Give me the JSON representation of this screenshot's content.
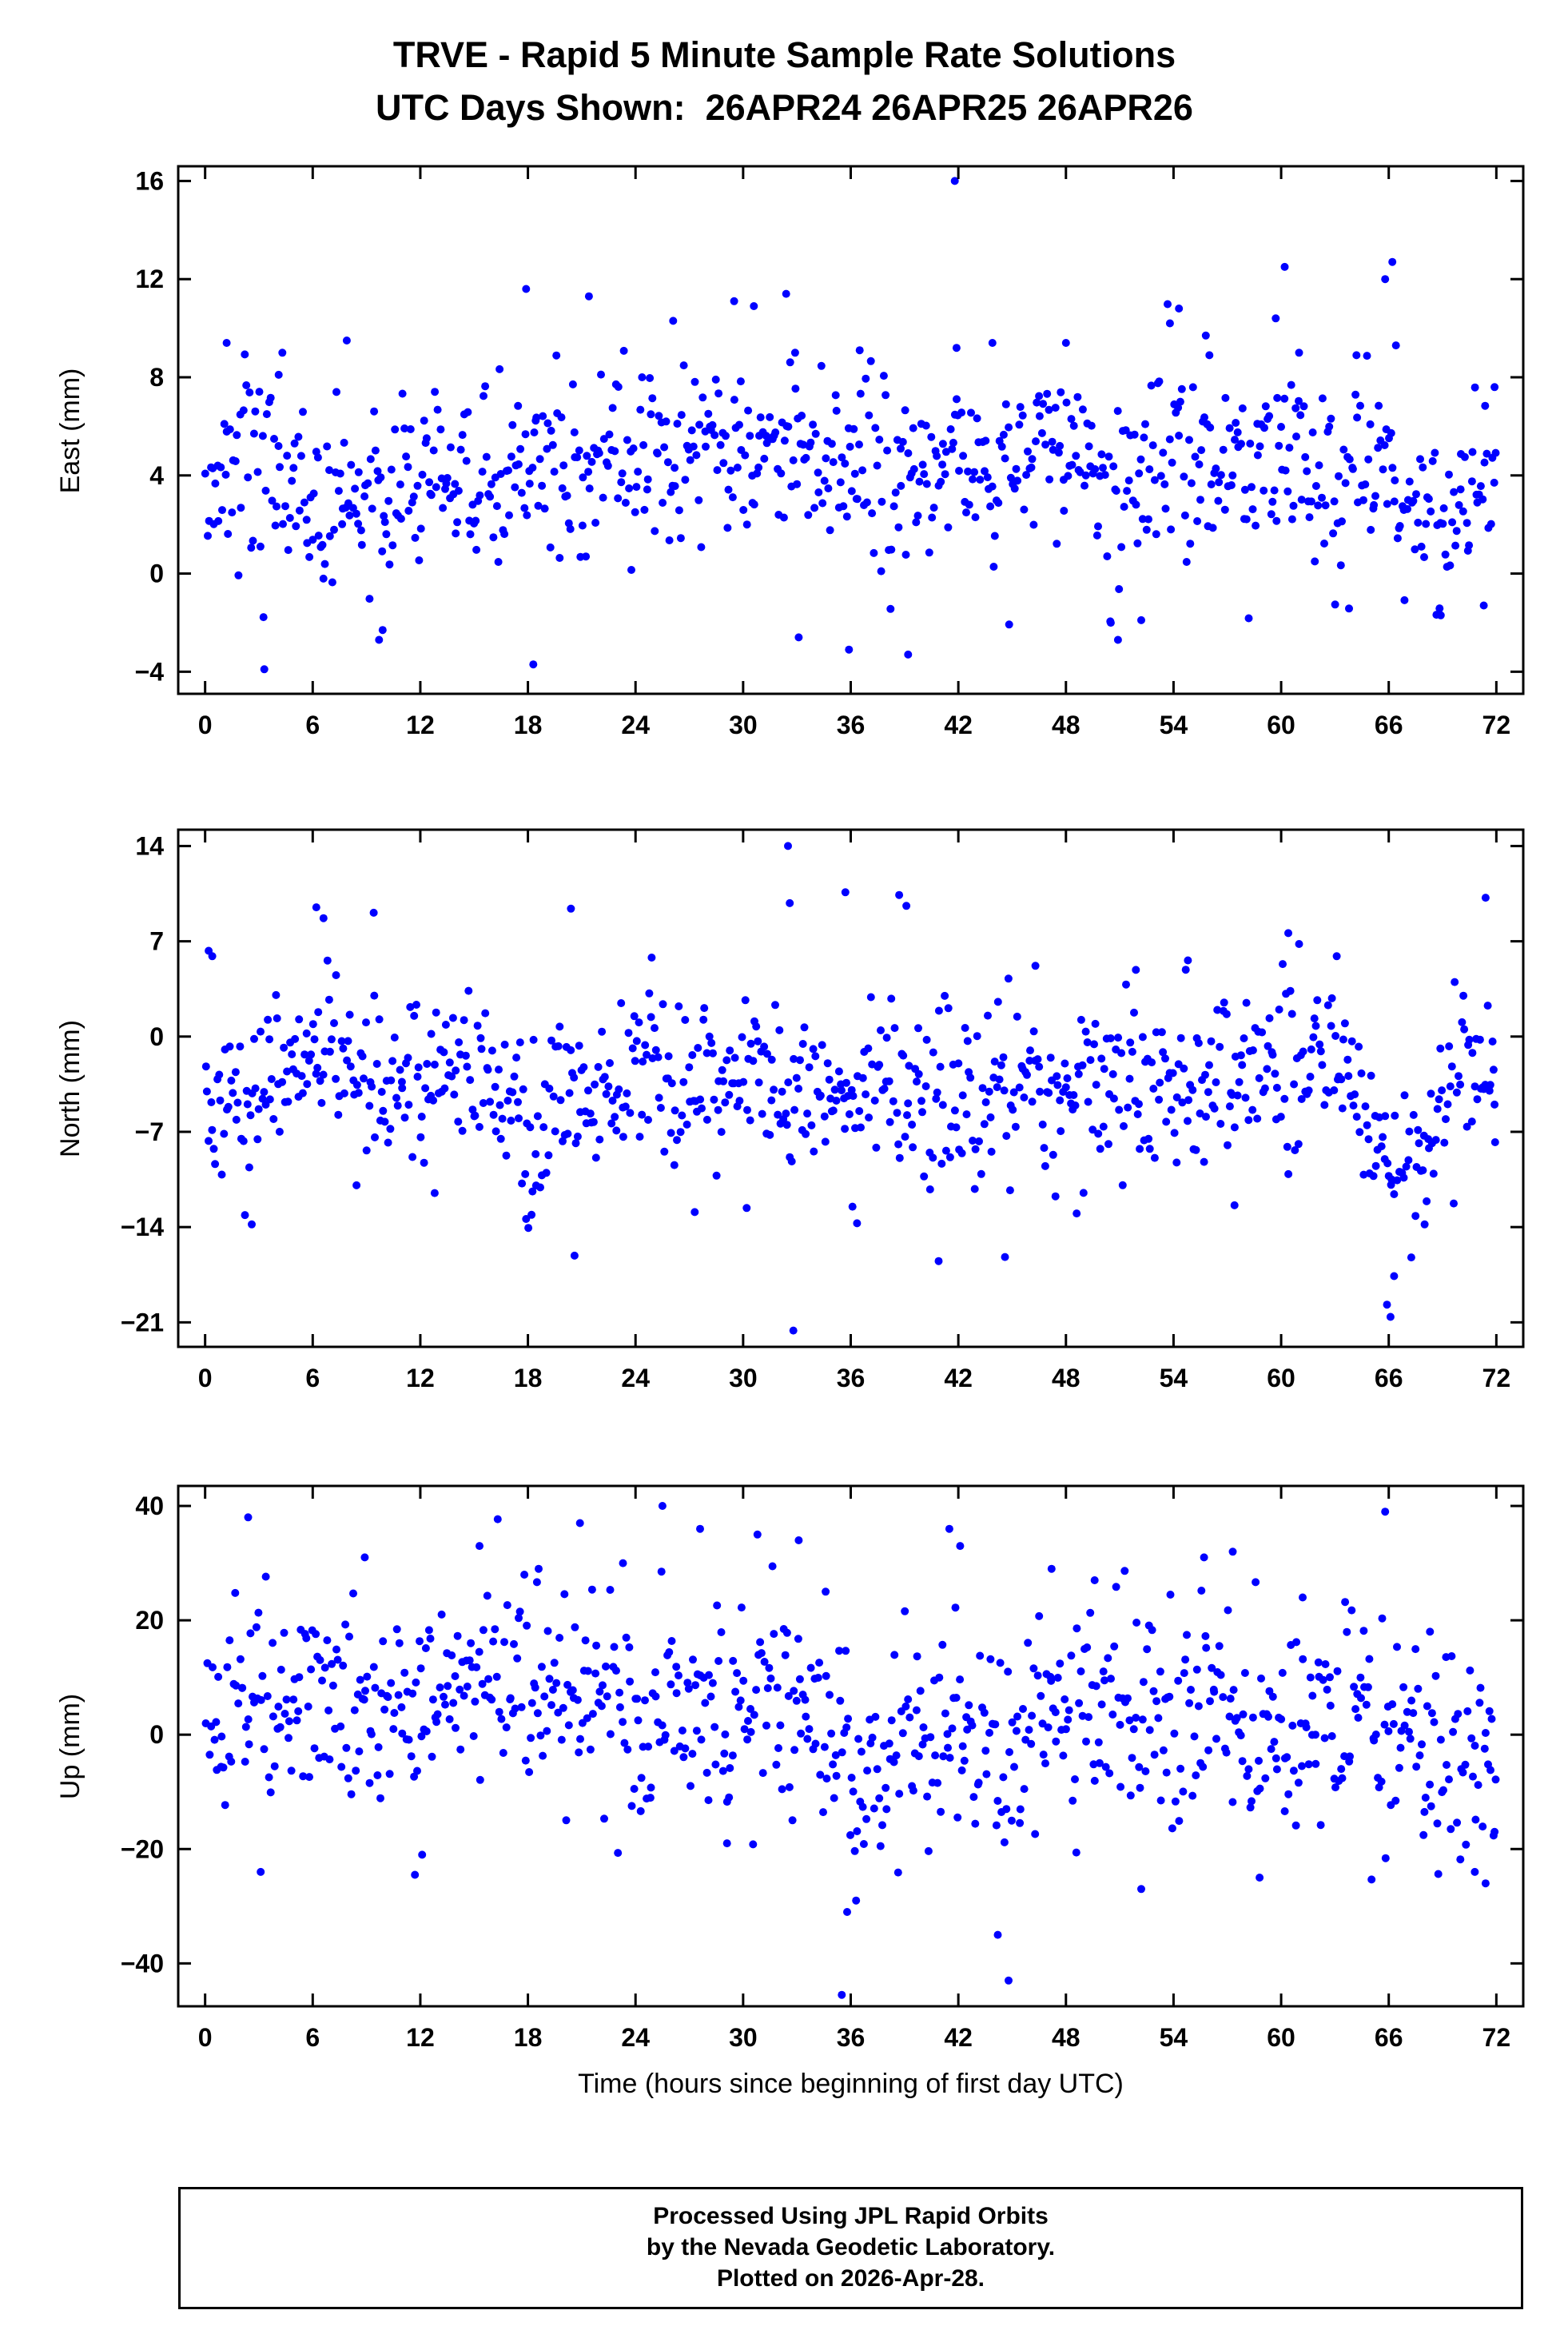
{
  "title": "TRVE - Rapid 5 Minute Sample Rate Solutions",
  "subtitle": "UTC Days Shown:  26APR24 26APR25 26APR26",
  "xlabel": "Time (hours since beginning of first day UTC)",
  "footer": {
    "line1": "Processed Using JPL Rapid Orbits",
    "line2": "by the Nevada Geodetic Laboratory.",
    "line3": "Plotted on 2026-Apr-28."
  },
  "colors": {
    "point": "#0000FF",
    "frame": "#000000"
  },
  "chart_data": [
    {
      "type": "scatter",
      "name": "east",
      "ylabel": "East (mm)",
      "xlabel": "",
      "xlim": [
        -1.5,
        73.5
      ],
      "ylim": [
        -4.9,
        16.6
      ],
      "xticks": [
        0,
        6,
        12,
        18,
        24,
        30,
        36,
        42,
        48,
        54,
        60,
        66,
        72
      ],
      "yticks": [
        -4,
        0,
        4,
        8,
        12,
        16
      ],
      "n_points": 800,
      "seed": 7,
      "noise_std": 1.9,
      "mean_path": [
        [
          0,
          3.4
        ],
        [
          3,
          4.4
        ],
        [
          6,
          3.4
        ],
        [
          9,
          3.2
        ],
        [
          12,
          3.8
        ],
        [
          15,
          3.4
        ],
        [
          18,
          4.2
        ],
        [
          21,
          4.4
        ],
        [
          24,
          5.2
        ],
        [
          27,
          5.4
        ],
        [
          30,
          5.0
        ],
        [
          33,
          5.4
        ],
        [
          36,
          4.4
        ],
        [
          39,
          3.8
        ],
        [
          42,
          4.6
        ],
        [
          45,
          4.6
        ],
        [
          48,
          5.2
        ],
        [
          51,
          3.2
        ],
        [
          54,
          4.6
        ],
        [
          57,
          4.8
        ],
        [
          60,
          4.2
        ],
        [
          63,
          3.4
        ],
        [
          66,
          3.6
        ],
        [
          69,
          2.8
        ],
        [
          72,
          4.2
        ]
      ],
      "outliers": [
        [
          1.2,
          9.4
        ],
        [
          3.3,
          -3.9
        ],
        [
          4.1,
          8.1
        ],
        [
          7.9,
          9.5
        ],
        [
          9.7,
          -2.7
        ],
        [
          9.9,
          -2.3
        ],
        [
          17.9,
          11.6
        ],
        [
          18.3,
          -3.7
        ],
        [
          21.4,
          11.3
        ],
        [
          26.1,
          10.3
        ],
        [
          29.5,
          11.1
        ],
        [
          30.6,
          10.9
        ],
        [
          32.4,
          11.4
        ],
        [
          32.9,
          9.0
        ],
        [
          33.1,
          -2.6
        ],
        [
          35.9,
          -3.1
        ],
        [
          36.5,
          9.1
        ],
        [
          39.2,
          -3.3
        ],
        [
          41.8,
          16.0
        ],
        [
          41.9,
          9.2
        ],
        [
          43.9,
          9.4
        ],
        [
          48.0,
          9.4
        ],
        [
          50.9,
          -2.7
        ],
        [
          52.2,
          -1.9
        ],
        [
          53.8,
          10.2
        ],
        [
          54.3,
          10.8
        ],
        [
          55.8,
          9.7
        ],
        [
          56.0,
          8.9
        ],
        [
          59.7,
          10.4
        ],
        [
          60.2,
          12.5
        ],
        [
          61.0,
          9.0
        ],
        [
          64.2,
          8.9
        ],
        [
          65.8,
          12.0
        ],
        [
          66.2,
          12.7
        ],
        [
          66.4,
          9.3
        ],
        [
          68.9,
          -1.7
        ],
        [
          71.3,
          -1.3
        ],
        [
          71.9,
          7.6
        ]
      ]
    },
    {
      "type": "scatter",
      "name": "north",
      "ylabel": "North (mm)",
      "xlabel": "",
      "xlim": [
        -1.5,
        73.5
      ],
      "ylim": [
        -22.8,
        15.2
      ],
      "xticks": [
        0,
        6,
        12,
        18,
        24,
        30,
        36,
        42,
        48,
        54,
        60,
        66,
        72
      ],
      "yticks": [
        -21,
        -14,
        -7,
        0,
        7,
        14
      ],
      "n_points": 800,
      "seed": 13,
      "noise_std": 3.1,
      "mean_path": [
        [
          0,
          -4.8
        ],
        [
          2,
          -6.5
        ],
        [
          4,
          -4.5
        ],
        [
          6,
          -2.2
        ],
        [
          8,
          -1.8
        ],
        [
          10,
          -2.5
        ],
        [
          12,
          -2.2
        ],
        [
          14,
          -3.0
        ],
        [
          16,
          -4.5
        ],
        [
          18,
          -6.0
        ],
        [
          20,
          -4.5
        ],
        [
          22,
          -3.2
        ],
        [
          24,
          -3.0
        ],
        [
          26,
          -3.6
        ],
        [
          28,
          -3.2
        ],
        [
          30,
          -3.0
        ],
        [
          32,
          -3.4
        ],
        [
          34,
          -3.8
        ],
        [
          36,
          -4.2
        ],
        [
          38,
          -4.6
        ],
        [
          40,
          -4.2
        ],
        [
          42,
          -4.8
        ],
        [
          44,
          -4.0
        ],
        [
          46,
          -3.2
        ],
        [
          48,
          -4.4
        ],
        [
          50,
          -3.4
        ],
        [
          52,
          -3.0
        ],
        [
          54,
          -4.2
        ],
        [
          56,
          -3.6
        ],
        [
          58,
          -3.0
        ],
        [
          60,
          -2.2
        ],
        [
          62,
          -1.2
        ],
        [
          64,
          -2.5
        ],
        [
          66,
          -9.5
        ],
        [
          67,
          -10.5
        ],
        [
          68,
          -8.0
        ],
        [
          70,
          -2.5
        ],
        [
          72,
          -3.5
        ]
      ],
      "outliers": [
        [
          0.2,
          6.3
        ],
        [
          0.4,
          5.9
        ],
        [
          2.6,
          -13.8
        ],
        [
          6.2,
          9.5
        ],
        [
          6.6,
          8.7
        ],
        [
          9.4,
          9.1
        ],
        [
          12.8,
          -11.5
        ],
        [
          17.9,
          -13.4
        ],
        [
          18.2,
          -13.1
        ],
        [
          20.4,
          9.4
        ],
        [
          20.6,
          -16.1
        ],
        [
          24.9,
          5.8
        ],
        [
          27.3,
          -12.9
        ],
        [
          30.2,
          -12.6
        ],
        [
          32.5,
          14.0
        ],
        [
          32.6,
          9.8
        ],
        [
          32.8,
          -21.6
        ],
        [
          35.7,
          10.6
        ],
        [
          36.1,
          -12.5
        ],
        [
          38.7,
          10.4
        ],
        [
          39.1,
          9.6
        ],
        [
          40.9,
          -16.5
        ],
        [
          44.6,
          -16.2
        ],
        [
          46.3,
          5.2
        ],
        [
          48.6,
          -13.0
        ],
        [
          51.9,
          4.9
        ],
        [
          54.8,
          5.6
        ],
        [
          57.4,
          -12.4
        ],
        [
          60.4,
          7.6
        ],
        [
          61.0,
          6.8
        ],
        [
          63.1,
          5.9
        ],
        [
          65.9,
          -19.7
        ],
        [
          66.1,
          -20.6
        ],
        [
          66.3,
          -17.6
        ],
        [
          68.0,
          -13.8
        ],
        [
          71.4,
          10.2
        ],
        [
          71.9,
          -5.0
        ]
      ]
    },
    {
      "type": "scatter",
      "name": "up",
      "ylabel": "Up (mm)",
      "xlabel": "Time (hours since beginning of first day UTC)",
      "xlim": [
        -1.5,
        73.5
      ],
      "ylim": [
        -47.5,
        43.5
      ],
      "xticks": [
        0,
        6,
        12,
        18,
        24,
        30,
        36,
        42,
        48,
        54,
        60,
        66,
        72
      ],
      "yticks": [
        -40,
        -20,
        0,
        20,
        40
      ],
      "n_points": 800,
      "seed": 21,
      "noise_std": 9.3,
      "mean_path": [
        [
          0,
          4
        ],
        [
          2,
          8
        ],
        [
          4,
          7
        ],
        [
          6,
          9
        ],
        [
          8,
          6
        ],
        [
          10,
          3
        ],
        [
          12,
          7
        ],
        [
          14,
          10
        ],
        [
          16,
          11
        ],
        [
          18,
          9
        ],
        [
          20,
          9
        ],
        [
          22,
          7
        ],
        [
          24,
          6
        ],
        [
          26,
          6
        ],
        [
          28,
          4
        ],
        [
          30,
          5
        ],
        [
          32,
          9
        ],
        [
          34,
          6
        ],
        [
          36,
          -6
        ],
        [
          38,
          -6
        ],
        [
          40,
          1
        ],
        [
          42,
          3
        ],
        [
          44,
          -1
        ],
        [
          46,
          1
        ],
        [
          48,
          3
        ],
        [
          50,
          3
        ],
        [
          52,
          2
        ],
        [
          54,
          4
        ],
        [
          56,
          5
        ],
        [
          58,
          2
        ],
        [
          60,
          0
        ],
        [
          62,
          3
        ],
        [
          64,
          2
        ],
        [
          66,
          1
        ],
        [
          68,
          -2
        ],
        [
          70,
          -3
        ],
        [
          72,
          -5
        ]
      ],
      "outliers": [
        [
          2.4,
          38
        ],
        [
          3.1,
          -24
        ],
        [
          8.9,
          31
        ],
        [
          11.7,
          -24.5
        ],
        [
          12.1,
          -21
        ],
        [
          15.3,
          33
        ],
        [
          18.6,
          29
        ],
        [
          20.9,
          37
        ],
        [
          23.3,
          30
        ],
        [
          25.5,
          40
        ],
        [
          27.6,
          36
        ],
        [
          29.1,
          -19
        ],
        [
          30.8,
          35
        ],
        [
          33.1,
          34
        ],
        [
          34.6,
          25
        ],
        [
          35.5,
          -45.5
        ],
        [
          35.8,
          -31
        ],
        [
          36.3,
          -29
        ],
        [
          41.5,
          36
        ],
        [
          42.1,
          33
        ],
        [
          44.2,
          -35
        ],
        [
          44.8,
          -43
        ],
        [
          47.2,
          29
        ],
        [
          49.6,
          27
        ],
        [
          52.2,
          -27
        ],
        [
          55.7,
          31
        ],
        [
          57.3,
          32
        ],
        [
          58.8,
          -25
        ],
        [
          61.2,
          24
        ],
        [
          65.8,
          39
        ],
        [
          68.3,
          18
        ],
        [
          70.8,
          -24
        ],
        [
          71.4,
          -26
        ],
        [
          71.9,
          -17
        ]
      ]
    }
  ]
}
